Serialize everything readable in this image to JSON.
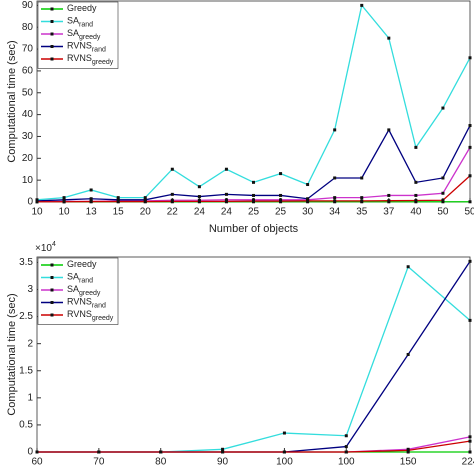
{
  "chart_data": [
    {
      "type": "line",
      "ylabel": "Computational time (sec)",
      "xlabel": "Number of objects",
      "categories": [
        "10",
        "10",
        "13",
        "15",
        "20",
        "22",
        "24",
        "24",
        "25",
        "25",
        "30",
        "34",
        "35",
        "37",
        "40",
        "50",
        "50"
      ],
      "ylim": [
        0,
        92
      ],
      "yticks": [
        0,
        10,
        20,
        30,
        40,
        50,
        60,
        70,
        80,
        90
      ],
      "legend": "upper left",
      "series": [
        {
          "name": "Greedy",
          "color": "#00cc00",
          "values": [
            0.1,
            0.1,
            0.1,
            0.1,
            0.1,
            0.1,
            0.1,
            0.1,
            0.1,
            0.1,
            0.1,
            0.1,
            0.1,
            0.1,
            0.1,
            0.1,
            0.1
          ]
        },
        {
          "name": "SA",
          "subscript": "rand",
          "color": "#33dddd",
          "values": [
            1,
            2,
            5.5,
            2,
            2,
            15,
            7,
            15,
            9,
            13,
            8,
            33,
            90,
            75,
            25,
            43,
            66
          ]
        },
        {
          "name": "SA",
          "subscript": "greedy",
          "color": "#cc33cc",
          "values": [
            0.2,
            0.3,
            0.3,
            0.5,
            0.5,
            0.8,
            0.8,
            1,
            1,
            1,
            1,
            2,
            2,
            3,
            3,
            4,
            25
          ]
        },
        {
          "name": "RVNS",
          "subscript": "rand",
          "color": "#000080",
          "values": [
            0.5,
            1,
            1.5,
            1,
            1,
            3.5,
            2.5,
            3.5,
            3,
            3,
            1.5,
            11,
            11,
            33,
            9,
            11,
            35
          ]
        },
        {
          "name": "RVNS",
          "subscript": "greedy",
          "color": "#cc0000",
          "values": [
            0.1,
            0.1,
            0.2,
            0.2,
            0.2,
            0.3,
            0.3,
            0.3,
            0.4,
            0.4,
            0.5,
            0.5,
            0.5,
            0.6,
            0.7,
            0.8,
            12
          ]
        }
      ]
    },
    {
      "type": "line",
      "ylabel": "Computational time (sec)",
      "xlabel": "Number of objects",
      "yexponent": {
        "base": "×10",
        "power": "4"
      },
      "categories": [
        "60",
        "70",
        "80",
        "90",
        "100",
        "100",
        "150",
        "224"
      ],
      "ylim": [
        0,
        3.6
      ],
      "yticks": [
        0,
        0.5,
        1,
        1.5,
        2,
        2.5,
        3,
        3.5
      ],
      "legend": "upper left",
      "series": [
        {
          "name": "Greedy",
          "color": "#00cc00",
          "values": [
            0,
            0,
            0,
            0,
            0,
            0,
            0,
            0
          ]
        },
        {
          "name": "SA",
          "subscript": "rand",
          "color": "#33dddd",
          "values": [
            0,
            0,
            0,
            0.05,
            0.35,
            0.3,
            3.42,
            2.43
          ]
        },
        {
          "name": "SA",
          "subscript": "greedy",
          "color": "#cc33cc",
          "values": [
            0,
            0,
            0,
            0,
            0,
            0,
            0.05,
            0.28
          ]
        },
        {
          "name": "RVNS",
          "subscript": "rand",
          "color": "#000080",
          "values": [
            0,
            0,
            0,
            0,
            0,
            0.1,
            1.8,
            3.52
          ]
        },
        {
          "name": "RVNS",
          "subscript": "greedy",
          "color": "#cc0000",
          "values": [
            0,
            0,
            0,
            0,
            0,
            0,
            0.03,
            0.2
          ]
        }
      ]
    }
  ]
}
